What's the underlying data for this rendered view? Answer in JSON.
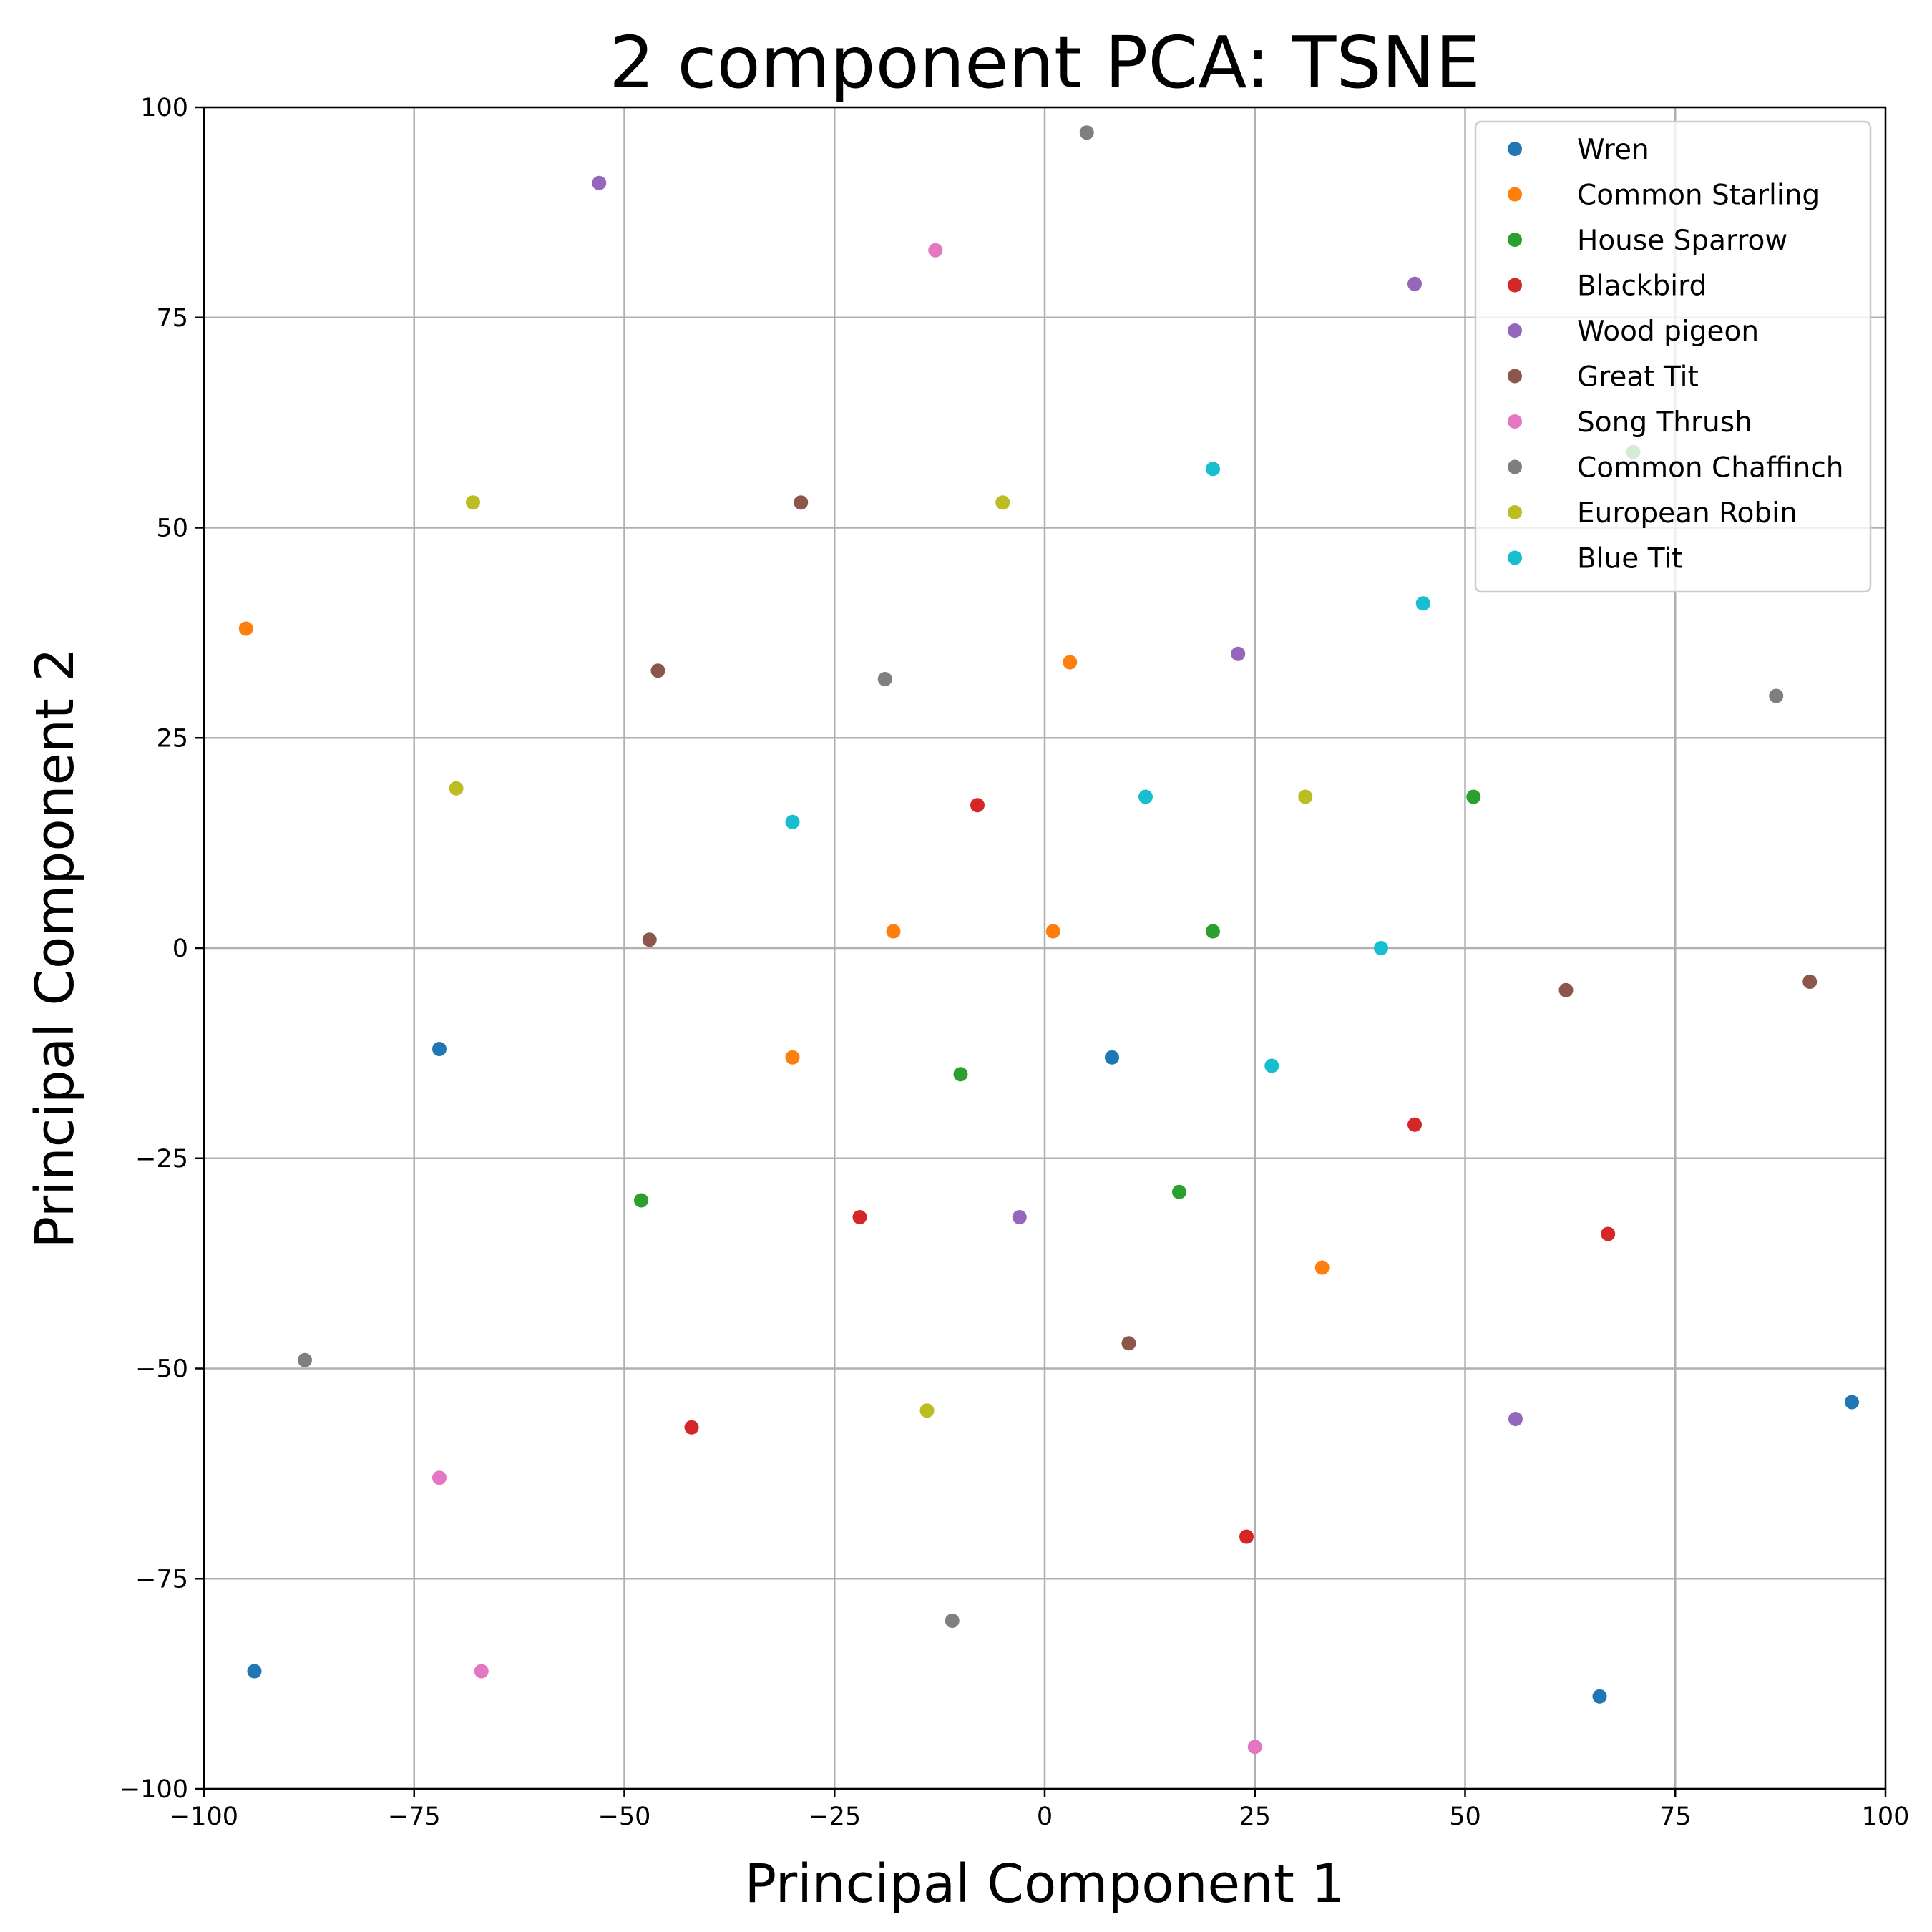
{
  "chart_data": {
    "type": "scatter",
    "title": "2 component PCA: TSNE",
    "xlabel": "Principal Component 1",
    "ylabel": "Principal Component 2",
    "xlim": [
      -100,
      100
    ],
    "ylim": [
      -100,
      100
    ],
    "xticks": [
      -100,
      -75,
      -50,
      -25,
      0,
      25,
      50,
      75,
      100
    ],
    "yticks": [
      -100,
      -75,
      -50,
      -25,
      0,
      25,
      50,
      75,
      100
    ],
    "xtick_labels": [
      "−100",
      "−75",
      "−50",
      "−25",
      "0",
      "25",
      "50",
      "75",
      "100"
    ],
    "ytick_labels": [
      "−100",
      "−75",
      "−50",
      "−25",
      "0",
      "25",
      "50",
      "75",
      "100"
    ],
    "grid": true,
    "legend_position": "top-right",
    "series": [
      {
        "name": "Wren",
        "color": "#1f77b4",
        "points": [
          [
            -72,
            -12
          ],
          [
            8,
            -13
          ],
          [
            -94,
            -86
          ],
          [
            66,
            -89
          ],
          [
            96,
            -54
          ]
        ]
      },
      {
        "name": "Common Starling",
        "color": "#ff7f0e",
        "points": [
          [
            -95,
            38
          ],
          [
            3,
            34
          ],
          [
            1,
            2
          ],
          [
            -18,
            2
          ],
          [
            -30,
            -13
          ],
          [
            33,
            -38
          ]
        ]
      },
      {
        "name": "House Sparrow",
        "color": "#2ca02c",
        "points": [
          [
            70,
            59
          ],
          [
            51,
            18
          ],
          [
            20,
            2
          ],
          [
            -10,
            -15
          ],
          [
            -48,
            -30
          ],
          [
            16,
            -29
          ]
        ]
      },
      {
        "name": "Blackbird",
        "color": "#d62728",
        "points": [
          [
            -8,
            17
          ],
          [
            44,
            -21
          ],
          [
            -22,
            -32
          ],
          [
            67,
            -34
          ],
          [
            -42,
            -57
          ],
          [
            24,
            -70
          ]
        ]
      },
      {
        "name": "Wood pigeon",
        "color": "#9467bd",
        "points": [
          [
            -53,
            91
          ],
          [
            44,
            79
          ],
          [
            23,
            35
          ],
          [
            -3,
            -32
          ],
          [
            56,
            -56
          ]
        ]
      },
      {
        "name": "Great Tit",
        "color": "#8c564b",
        "points": [
          [
            -29,
            53
          ],
          [
            -46,
            33
          ],
          [
            -47,
            1
          ],
          [
            62,
            -5
          ],
          [
            91,
            -4
          ],
          [
            10,
            -47
          ]
        ]
      },
      {
        "name": "Song Thrush",
        "color": "#e377c2",
        "points": [
          [
            -13,
            83
          ],
          [
            -72,
            -63
          ],
          [
            -67,
            -86
          ],
          [
            25,
            -95
          ]
        ]
      },
      {
        "name": "Common Chaffinch",
        "color": "#7f7f7f",
        "points": [
          [
            5,
            97
          ],
          [
            -19,
            32
          ],
          [
            87,
            30
          ],
          [
            -88,
            -49
          ],
          [
            -11,
            -80
          ]
        ]
      },
      {
        "name": "European Robin",
        "color": "#bcbd22",
        "points": [
          [
            -68,
            53
          ],
          [
            -5,
            53
          ],
          [
            -70,
            19
          ],
          [
            31,
            18
          ],
          [
            -14,
            -55
          ]
        ]
      },
      {
        "name": "Blue Tit",
        "color": "#17becf",
        "points": [
          [
            20,
            57
          ],
          [
            45,
            41
          ],
          [
            -30,
            15
          ],
          [
            12,
            18
          ],
          [
            40,
            0
          ],
          [
            27,
            -14
          ]
        ]
      }
    ]
  }
}
